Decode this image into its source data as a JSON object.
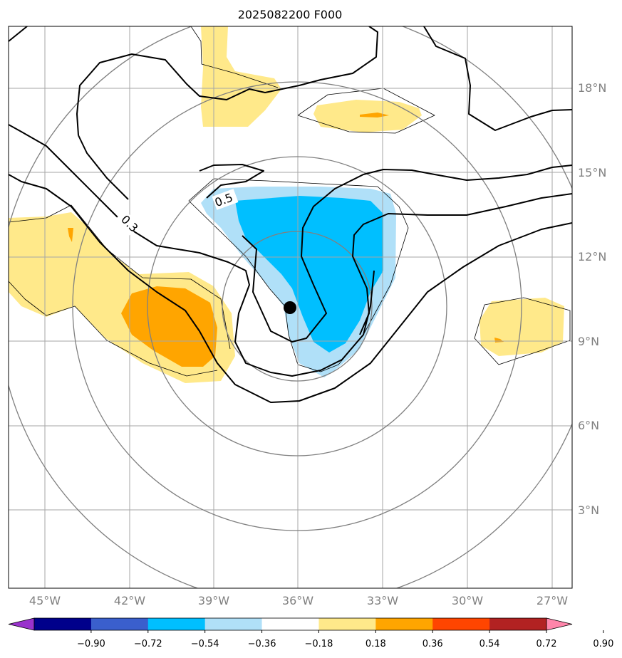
{
  "title": "2025082200 F000",
  "lat_labels": [
    "18°N",
    "15°N",
    "12°N",
    "9°N",
    "6°N",
    "3°N"
  ],
  "lon_labels": [
    "45°W",
    "42°W",
    "39°W",
    "36°W",
    "33°W",
    "30°W",
    "27°W"
  ],
  "contour_labels": [
    "0.3",
    "0.5"
  ],
  "colorbar": {
    "ticks": [
      "−0.90",
      "−0.72",
      "−0.54",
      "−0.36",
      "−0.18",
      "0.18",
      "0.36",
      "0.54",
      "0.72",
      "0.90"
    ],
    "colors": [
      "#9932cc",
      "#00008b",
      "#3a5fcd",
      "#00bfff",
      "#b0e0f8",
      "#ffffff",
      "#ffe98a",
      "#ffa500",
      "#ff4500",
      "#b22222",
      "#ff85aa"
    ]
  },
  "palette": {
    "light_yellow": "#ffe98a",
    "orange": "#ffa500",
    "deep_sky_blue": "#00bfff",
    "light_blue": "#b0e0f8"
  },
  "center_marker": "storm-center-dot"
}
